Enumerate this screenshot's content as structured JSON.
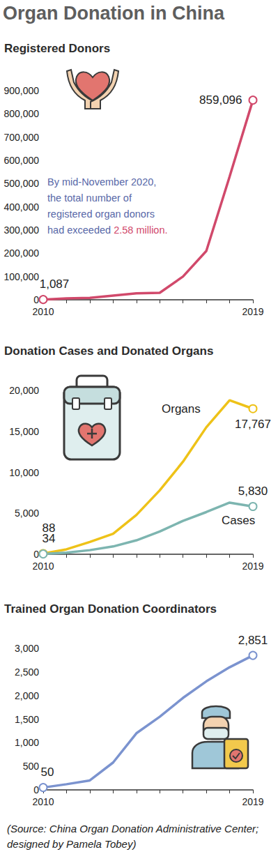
{
  "title": "Organ Donation in China",
  "source": "(Source: China Organ Donation Administrative Center; designed by Pamela Tobey)",
  "chart_data": [
    {
      "type": "line",
      "title": "Registered Donors",
      "categories": [
        "2010",
        null,
        null,
        null,
        null,
        null,
        null,
        null,
        null,
        "2019"
      ],
      "values": [
        1087,
        6000,
        8000,
        18000,
        28000,
        30000,
        100000,
        210000,
        530000,
        859096
      ],
      "value_labels": [
        "1,087",
        null,
        null,
        null,
        null,
        null,
        null,
        null,
        null,
        "859,096"
      ],
      "color": "#d1496b",
      "marker": "circle",
      "data_labels": true,
      "grid": false,
      "ylim": [
        0,
        900000
      ],
      "yticks": [
        0,
        {
          "value": 100000,
          "label": "100,000"
        },
        {
          "value": 200000,
          "label": "200,000"
        },
        {
          "value": 300000,
          "label": "300,000"
        },
        {
          "value": 400000,
          "label": "400,000"
        },
        {
          "value": 500000,
          "label": "500,000"
        },
        {
          "value": 600000,
          "label": "600,000"
        },
        {
          "value": 700000,
          "label": "700,000"
        },
        {
          "value": 800000,
          "label": "800,000"
        },
        {
          "value": 900000,
          "label": "900,000"
        }
      ],
      "annotation": [
        {
          "text": "By mid-November 2020, the total number of registered organ donors had exceeded",
          "color": "#5868a8"
        },
        {
          "text": "2.58 million.",
          "color": "#d1496b"
        }
      ]
    },
    {
      "type": "line",
      "title": "Donation Cases and Donated Organs",
      "categories": [
        "2010",
        null,
        null,
        null,
        null,
        null,
        null,
        null,
        null,
        "2019"
      ],
      "series": [
        {
          "name": "Organs",
          "color": "#eec218",
          "values": [
            88,
            600,
            1500,
            2500,
            4800,
            7800,
            11300,
            15500,
            18800,
            17767
          ],
          "value_labels": [
            "88",
            null,
            null,
            null,
            null,
            null,
            null,
            null,
            null,
            "17,767"
          ]
        },
        {
          "name": "Cases",
          "color": "#7db5b0",
          "values": [
            34,
            200,
            500,
            950,
            1700,
            2770,
            4080,
            5150,
            6300,
            5830
          ],
          "value_labels": [
            "34",
            null,
            null,
            null,
            null,
            null,
            null,
            null,
            null,
            "5,830"
          ]
        }
      ],
      "marker": "circle",
      "data_labels": true,
      "grid": false,
      "ylim": [
        0,
        20000
      ],
      "yticks": [
        0,
        {
          "value": 5000,
          "label": "5,000"
        },
        {
          "value": 10000,
          "label": "10,000"
        },
        {
          "value": 15000,
          "label": "15,000"
        },
        {
          "value": 20000,
          "label": "20,000"
        }
      ]
    },
    {
      "type": "line",
      "title": "Trained Organ Donation Coordinators",
      "categories": [
        "2010",
        null,
        null,
        null,
        null,
        null,
        null,
        null,
        null,
        "2019"
      ],
      "values": [
        50,
        120,
        200,
        580,
        1200,
        1550,
        1950,
        2300,
        2600,
        2851
      ],
      "value_labels": [
        "50",
        null,
        null,
        null,
        null,
        null,
        null,
        null,
        null,
        "2,851"
      ],
      "color": "#7b93cf",
      "marker": "circle",
      "data_labels": true,
      "grid": false,
      "ylim": [
        0,
        3000
      ],
      "yticks": [
        0,
        500,
        {
          "value": 1000,
          "label": "1,000"
        },
        {
          "value": 1500,
          "label": "1,500"
        },
        {
          "value": 2000,
          "label": "2,000"
        },
        {
          "value": 2500,
          "label": "2,500"
        },
        {
          "value": 3000,
          "label": "3,000"
        }
      ]
    }
  ]
}
